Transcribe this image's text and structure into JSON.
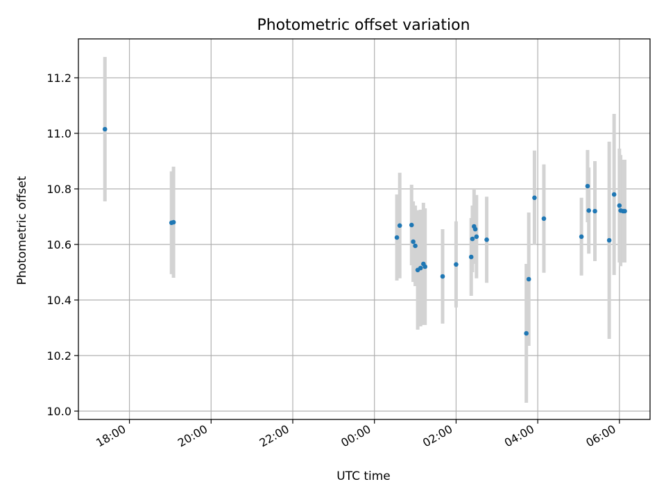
{
  "chart_data": {
    "type": "scatter",
    "title": "Photometric offset variation",
    "xlabel": "UTC time",
    "ylabel": "Photometric offset",
    "x_unit": "hours since 00:00 UTC (negative = previous day)",
    "xlim": [
      -7.25,
      6.75
    ],
    "ylim": [
      9.97,
      11.34
    ],
    "x_ticks": [
      {
        "value": -6,
        "label": "18:00"
      },
      {
        "value": -4,
        "label": "20:00"
      },
      {
        "value": -2,
        "label": "22:00"
      },
      {
        "value": 0,
        "label": "00:00"
      },
      {
        "value": 2,
        "label": "02:00"
      },
      {
        "value": 4,
        "label": "04:00"
      },
      {
        "value": 6,
        "label": "06:00"
      }
    ],
    "y_ticks": [
      {
        "value": 10.0,
        "label": "10.0"
      },
      {
        "value": 10.2,
        "label": "10.2"
      },
      {
        "value": 10.4,
        "label": "10.4"
      },
      {
        "value": 10.6,
        "label": "10.6"
      },
      {
        "value": 10.8,
        "label": "10.8"
      },
      {
        "value": 11.0,
        "label": "11.0"
      },
      {
        "value": 11.2,
        "label": "11.2"
      }
    ],
    "grid": true,
    "marker_color": "#1f77b4",
    "errorbar_color": "#d3d3d3",
    "points": [
      {
        "x": -6.6,
        "y": 11.015,
        "err": 0.26
      },
      {
        "x": -4.97,
        "y": 10.678,
        "err": 0.185
      },
      {
        "x": -4.92,
        "y": 10.68,
        "err": 0.2
      },
      {
        "x": 0.55,
        "y": 10.625,
        "err": 0.155
      },
      {
        "x": 0.62,
        "y": 10.668,
        "err": 0.19
      },
      {
        "x": 0.91,
        "y": 10.67,
        "err": 0.145
      },
      {
        "x": 0.95,
        "y": 10.61,
        "err": 0.145
      },
      {
        "x": 1.0,
        "y": 10.595,
        "err": 0.145
      },
      {
        "x": 1.06,
        "y": 10.508,
        "err": 0.215
      },
      {
        "x": 1.13,
        "y": 10.515,
        "err": 0.21
      },
      {
        "x": 1.2,
        "y": 10.53,
        "err": 0.22
      },
      {
        "x": 1.24,
        "y": 10.52,
        "err": 0.21
      },
      {
        "x": 1.67,
        "y": 10.485,
        "err": 0.17
      },
      {
        "x": 2.0,
        "y": 10.528,
        "err": 0.155
      },
      {
        "x": 2.37,
        "y": 10.555,
        "err": 0.14
      },
      {
        "x": 2.4,
        "y": 10.62,
        "err": 0.12
      },
      {
        "x": 2.44,
        "y": 10.665,
        "err": 0.135
      },
      {
        "x": 2.47,
        "y": 10.655,
        "err": 0.11
      },
      {
        "x": 2.5,
        "y": 10.628,
        "err": 0.15
      },
      {
        "x": 2.75,
        "y": 10.617,
        "err": 0.155
      },
      {
        "x": 3.72,
        "y": 10.28,
        "err": 0.25
      },
      {
        "x": 3.78,
        "y": 10.475,
        "err": 0.24
      },
      {
        "x": 3.92,
        "y": 10.768,
        "err": 0.17
      },
      {
        "x": 4.15,
        "y": 10.693,
        "err": 0.195
      },
      {
        "x": 5.07,
        "y": 10.628,
        "err": 0.14
      },
      {
        "x": 5.22,
        "y": 10.81,
        "err": 0.13
      },
      {
        "x": 5.25,
        "y": 10.722,
        "err": 0.155
      },
      {
        "x": 5.4,
        "y": 10.72,
        "err": 0.18
      },
      {
        "x": 5.75,
        "y": 10.615,
        "err": 0.355
      },
      {
        "x": 5.87,
        "y": 10.78,
        "err": 0.29
      },
      {
        "x": 6.0,
        "y": 10.74,
        "err": 0.205
      },
      {
        "x": 6.03,
        "y": 10.722,
        "err": 0.2
      },
      {
        "x": 6.09,
        "y": 10.72,
        "err": 0.185
      },
      {
        "x": 6.13,
        "y": 10.72,
        "err": 0.185
      }
    ]
  }
}
